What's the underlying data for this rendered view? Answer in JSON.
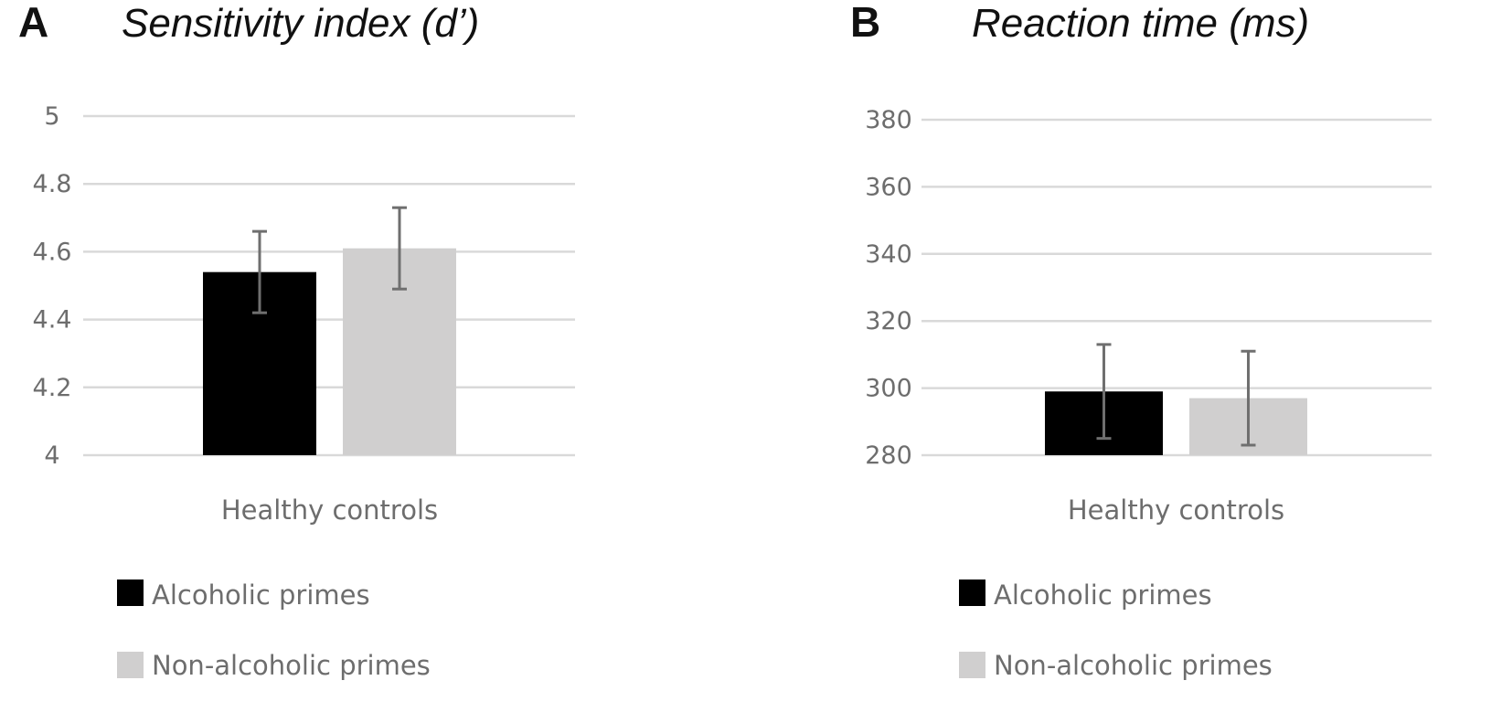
{
  "colors": {
    "alcoholic": "#000000",
    "non_alcoholic": "#d0cfcf",
    "error_bar": "#6f6f6f",
    "grid": "#d9d9d9",
    "text": "#6d6d6d"
  },
  "chart_data": [
    {
      "type": "bar",
      "panel_letter": "A",
      "title": "Sensitivity index (d’)",
      "categories": [
        "Healthy controls"
      ],
      "series": [
        {
          "name": "Alcoholic primes",
          "values": [
            4.54
          ],
          "error": [
            0.12
          ]
        },
        {
          "name": "Non-alcoholic primes",
          "values": [
            4.61
          ],
          "error": [
            0.12
          ]
        }
      ],
      "ylim": [
        4,
        5
      ],
      "yticks": [
        4,
        4.2,
        4.4,
        4.6,
        4.8,
        5
      ],
      "ytick_labels": [
        "4",
        "4.2",
        "4.4",
        "4.6",
        "4.8",
        "5"
      ],
      "grid": true,
      "legend_position": "bottom"
    },
    {
      "type": "bar",
      "panel_letter": "B",
      "title": "Reaction time (ms)",
      "categories": [
        "Healthy controls"
      ],
      "series": [
        {
          "name": "Alcoholic primes",
          "values": [
            299
          ],
          "error": [
            14
          ]
        },
        {
          "name": "Non-alcoholic primes",
          "values": [
            297
          ],
          "error": [
            14
          ]
        }
      ],
      "ylim": [
        280,
        380
      ],
      "yticks": [
        280,
        300,
        320,
        340,
        360,
        380
      ],
      "ytick_labels": [
        "280",
        "300",
        "320",
        "340",
        "360",
        "380"
      ],
      "grid": true,
      "legend_position": "bottom"
    }
  ]
}
